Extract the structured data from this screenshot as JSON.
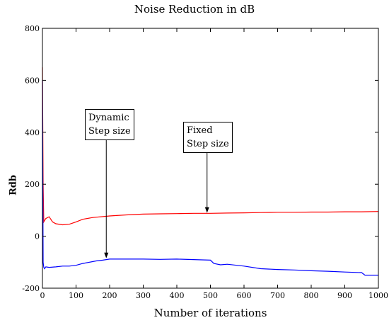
{
  "chart_data": {
    "type": "line",
    "title": "Noise Reduction in dB",
    "xlabel": "Number of iterations",
    "ylabel": "Rdb",
    "xlim": [
      0,
      1000
    ],
    "ylim": [
      -200,
      800
    ],
    "xticks": [
      0,
      100,
      200,
      300,
      400,
      500,
      600,
      700,
      800,
      900,
      1000
    ],
    "yticks": [
      -200,
      0,
      200,
      400,
      600,
      800
    ],
    "grid": false,
    "series": [
      {
        "color": "#ff0000",
        "x": [
          0,
          2,
          4,
          6,
          10,
          20,
          30,
          40,
          60,
          80,
          100,
          120,
          150,
          200,
          250,
          300,
          350,
          400,
          450,
          500,
          550,
          600,
          650,
          700,
          750,
          800,
          850,
          900,
          950,
          1000
        ],
        "y": [
          650,
          200,
          55,
          60,
          68,
          75,
          55,
          48,
          44,
          46,
          55,
          65,
          72,
          78,
          82,
          85,
          86,
          87,
          88,
          88,
          89,
          90,
          91,
          92,
          92,
          93,
          93,
          94,
          94,
          95
        ]
      },
      {
        "color": "#0000ff",
        "x": [
          0,
          2,
          4,
          6,
          10,
          20,
          40,
          60,
          80,
          100,
          120,
          140,
          160,
          180,
          200,
          250,
          300,
          350,
          400,
          450,
          500,
          510,
          530,
          550,
          600,
          650,
          700,
          750,
          800,
          850,
          900,
          950,
          960,
          1000
        ],
        "y": [
          600,
          -100,
          -120,
          -125,
          -118,
          -120,
          -118,
          -115,
          -115,
          -112,
          -105,
          -100,
          -95,
          -92,
          -88,
          -88,
          -88,
          -89,
          -88,
          -90,
          -92,
          -105,
          -110,
          -108,
          -115,
          -125,
          -128,
          -130,
          -133,
          -135,
          -138,
          -140,
          -150,
          -150
        ]
      }
    ],
    "annotations": [
      {
        "text": "Dynamic\nStep size",
        "arrow_to": [
          190,
          -85
        ]
      },
      {
        "text": "Fixed\nStep size",
        "arrow_to": [
          490,
          90
        ]
      }
    ]
  },
  "colors": {
    "axis": "#000000"
  }
}
